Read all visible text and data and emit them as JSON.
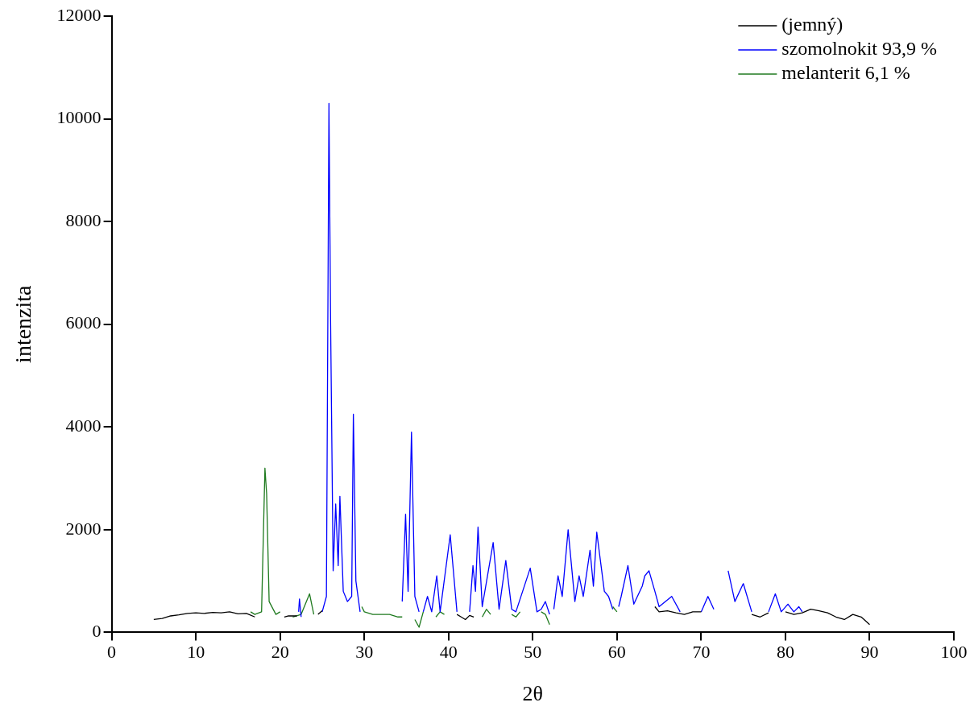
{
  "chart_data": {
    "type": "line",
    "xlabel": "2θ",
    "ylabel": "intenzita",
    "xlim": [
      0,
      100
    ],
    "xticks": [
      0,
      10,
      20,
      30,
      40,
      50,
      60,
      70,
      80,
      90,
      100
    ],
    "ylim": [
      0,
      12000
    ],
    "yticks": [
      0,
      2000,
      4000,
      6000,
      8000,
      10000,
      12000
    ],
    "grid": false,
    "legend": "top right",
    "marker": "none",
    "line_style": "solid",
    "series": [
      {
        "name": "(jemný)",
        "color": "#000000",
        "x": [
          5,
          6,
          7,
          8,
          9,
          10,
          11,
          12,
          13,
          14,
          15,
          16,
          17,
          17.2,
          20.5,
          21,
          22,
          22.2,
          24.5,
          25,
          25.2,
          41,
          41.5,
          42,
          42.5,
          43,
          43.2,
          64.5,
          65,
          66,
          67,
          68,
          69,
          70,
          70.3,
          76,
          77,
          78,
          78.3,
          80,
          81,
          82,
          83,
          84,
          85,
          86,
          87,
          88,
          89,
          90
        ],
        "values": [
          250,
          270,
          320,
          340,
          370,
          380,
          370,
          390,
          380,
          400,
          360,
          370,
          300,
          null,
          300,
          320,
          320,
          null,
          350,
          420,
          null,
          350,
          300,
          250,
          330,
          300,
          null,
          500,
          400,
          420,
          380,
          350,
          400,
          400,
          null,
          350,
          300,
          380,
          null,
          400,
          350,
          380,
          450,
          420,
          380,
          300,
          250,
          350,
          300,
          150
        ]
      },
      {
        "name": "szomolnokit 93,9 %",
        "color": "#0000ff",
        "x": [
          22.2,
          22.3,
          22.5,
          22.6,
          25,
          25.5,
          25.8,
          26,
          26.3,
          26.6,
          26.9,
          27.1,
          27.5,
          28,
          28.5,
          28.7,
          29,
          29.5,
          29.7,
          34.5,
          34.9,
          35.2,
          35.6,
          36,
          36.5,
          36.7,
          37,
          37.5,
          38,
          38.6,
          39,
          40.2,
          41,
          41.2,
          42.5,
          42.9,
          43.2,
          43.5,
          44,
          45.3,
          46,
          46.8,
          47.5,
          48,
          49.7,
          50.5,
          51,
          51.5,
          52,
          52.2,
          52.5,
          53,
          53.5,
          54.2,
          55,
          55.5,
          56,
          56.8,
          57.2,
          57.6,
          58.5,
          59,
          59.5,
          60,
          60.2,
          60.5,
          61.3,
          62,
          63,
          63.3,
          63.8,
          64.5,
          65,
          66.5,
          67.5,
          68,
          70,
          70.8,
          71.5,
          72,
          73.2,
          74,
          75,
          76,
          76.2,
          78,
          78.8,
          79.5,
          80.3,
          81,
          81.6,
          82
        ],
        "values": [
          400,
          650,
          300,
          null,
          400,
          700,
          10300,
          6000,
          1200,
          2500,
          1300,
          2650,
          800,
          600,
          700,
          4250,
          1000,
          400,
          null,
          600,
          2300,
          800,
          3900,
          700,
          400,
          null,
          400,
          700,
          400,
          1100,
          400,
          1900,
          400,
          null,
          400,
          1300,
          800,
          2050,
          500,
          1750,
          450,
          1400,
          450,
          400,
          1250,
          400,
          450,
          600,
          350,
          null,
          450,
          1100,
          700,
          2000,
          600,
          1100,
          700,
          1600,
          900,
          1950,
          800,
          700,
          450,
          null,
          500,
          700,
          1300,
          550,
          900,
          1100,
          1200,
          800,
          500,
          700,
          400,
          null,
          400,
          700,
          450,
          null,
          1200,
          600,
          950,
          400,
          null,
          400,
          750,
          400,
          550,
          400,
          500,
          400
        ]
      },
      {
        "name": "melanterit 6,1 %",
        "color": "#1f7a1f",
        "x": [
          16.5,
          17,
          17.8,
          18.2,
          18.4,
          18.7,
          19.5,
          20,
          20.4,
          21.5,
          22.5,
          23.5,
          24,
          24.2,
          29.7,
          30,
          31,
          32,
          33,
          34,
          34.5,
          34.7,
          36,
          36.5,
          37,
          37.2,
          38.5,
          39,
          39.5,
          39.7,
          44,
          44.5,
          45,
          45.2,
          47.5,
          48,
          48.5,
          48.7,
          51,
          51.5,
          52,
          52.2,
          59.5,
          60
        ],
        "values": [
          400,
          350,
          400,
          3200,
          2700,
          600,
          350,
          400,
          null,
          300,
          350,
          750,
          350,
          null,
          500,
          400,
          350,
          350,
          350,
          300,
          300,
          null,
          250,
          100,
          400,
          null,
          300,
          400,
          350,
          null,
          300,
          450,
          350,
          null,
          350,
          300,
          400,
          null,
          400,
          350,
          150,
          null,
          500,
          400
        ]
      }
    ]
  }
}
